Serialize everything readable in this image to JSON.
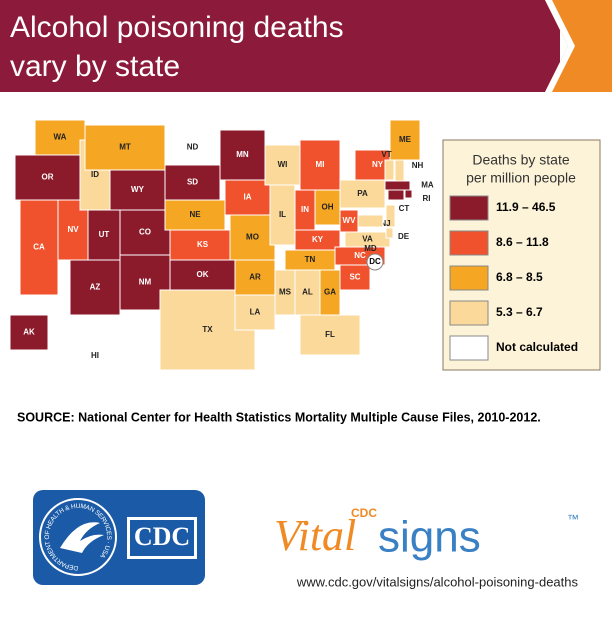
{
  "header": {
    "title_lines": [
      "Alcohol poisoning deaths",
      "vary by state"
    ]
  },
  "map": {
    "states": [
      {
        "label": "WA",
        "color": "#f5a623"
      },
      {
        "label": "OR",
        "color": "#8b1a2b"
      },
      {
        "label": "CA",
        "color": "#f0522d"
      },
      {
        "label": "NV",
        "color": "#f0522d"
      },
      {
        "label": "ID",
        "color": "#fbd99a"
      },
      {
        "label": "MT",
        "color": "#f5a623"
      },
      {
        "label": "WY",
        "color": "#8b1a2b"
      },
      {
        "label": "UT",
        "color": "#8b1a2b"
      },
      {
        "label": "AZ",
        "color": "#8b1a2b"
      },
      {
        "label": "CO",
        "color": "#8b1a2b"
      },
      {
        "label": "NM",
        "color": "#8b1a2b"
      },
      {
        "label": "ND",
        "color": "#ffffff"
      },
      {
        "label": "SD",
        "color": "#8b1a2b"
      },
      {
        "label": "NE",
        "color": "#f5a623"
      },
      {
        "label": "KS",
        "color": "#f0522d"
      },
      {
        "label": "OK",
        "color": "#8b1a2b"
      },
      {
        "label": "TX",
        "color": "#fbd99a"
      },
      {
        "label": "MN",
        "color": "#8b1a2b"
      },
      {
        "label": "IA",
        "color": "#f0522d"
      },
      {
        "label": "MO",
        "color": "#f5a623"
      },
      {
        "label": "AR",
        "color": "#f5a623"
      },
      {
        "label": "LA",
        "color": "#fbd99a"
      },
      {
        "label": "WI",
        "color": "#fbd99a"
      },
      {
        "label": "IL",
        "color": "#fbd99a"
      },
      {
        "label": "MS",
        "color": "#fbd99a"
      },
      {
        "label": "AL",
        "color": "#fbd99a"
      },
      {
        "label": "TN",
        "color": "#f5a623"
      },
      {
        "label": "KY",
        "color": "#f0522d"
      },
      {
        "label": "IN",
        "color": "#f0522d"
      },
      {
        "label": "OH",
        "color": "#f5a623"
      },
      {
        "label": "MI",
        "color": "#f0522d"
      },
      {
        "label": "GA",
        "color": "#f5a623"
      },
      {
        "label": "FL",
        "color": "#fbd99a"
      },
      {
        "label": "SC",
        "color": "#f0522d"
      },
      {
        "label": "NC",
        "color": "#f0522d"
      },
      {
        "label": "VA",
        "color": "#fbd99a"
      },
      {
        "label": "WV",
        "color": "#f0522d"
      },
      {
        "label": "PA",
        "color": "#fbd99a"
      },
      {
        "label": "NY",
        "color": "#f0522d"
      },
      {
        "label": "ME",
        "color": "#f5a623"
      },
      {
        "label": "VT",
        "color": "#fbd99a"
      },
      {
        "label": "NH",
        "color": "#fbd99a"
      },
      {
        "label": "MA",
        "color": "#8b1a2b"
      },
      {
        "label": "RI",
        "color": "#8b1a2b"
      },
      {
        "label": "CT",
        "color": "#8b1a2b"
      },
      {
        "label": "NJ",
        "color": "#fbd99a"
      },
      {
        "label": "DE",
        "color": "#fbd99a"
      },
      {
        "label": "MD",
        "color": "#fbd99a"
      },
      {
        "label": "DC",
        "color": "#ffffff"
      },
      {
        "label": "AK",
        "color": "#8b1a2b"
      },
      {
        "label": "HI",
        "color": "#ffffff"
      }
    ]
  },
  "legend": {
    "title_lines": [
      "Deaths by state",
      "per million people"
    ],
    "items": [
      {
        "label": "11.9 – 46.5",
        "color": "#8b1a2b"
      },
      {
        "label": "8.6 – 11.8",
        "color": "#f0522d"
      },
      {
        "label": "6.8 – 8.5",
        "color": "#f5a623"
      },
      {
        "label": "5.3 – 6.7",
        "color": "#fbd99a"
      },
      {
        "label": "Not calculated",
        "color": "#ffffff"
      }
    ]
  },
  "source": "SOURCE: National Center for Health Statistics Mortality Multiple Cause Files, 2010-2012.",
  "footer": {
    "seal_text": "DEPARTMENT OF HEALTH & HUMAN SERVICES · USA",
    "cdc_logo": "CDC",
    "vitalsigns": {
      "small": "CDC",
      "vital": "Vital",
      "signs": "signs",
      "tm": "™"
    },
    "url": "www.cdc.gov/vitalsigns/alcohol-poisoning-deaths"
  }
}
